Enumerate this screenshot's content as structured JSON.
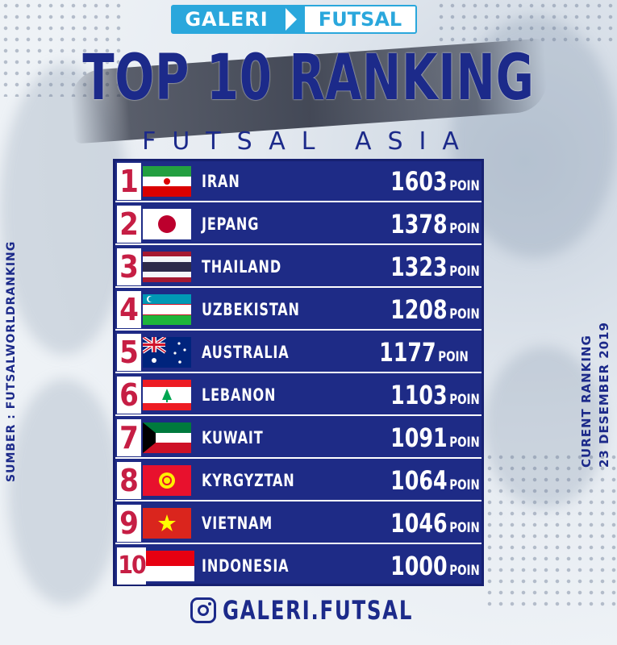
{
  "brand": {
    "left": "GALERI",
    "right": "FUTSAL",
    "icon": "chevron-right-icon"
  },
  "title": "TOP 10 RANKING",
  "subtitle": "FUTSAL ASIA",
  "rankings": [
    {
      "rank": "1",
      "country": "IRAN",
      "points": "1603",
      "unit": "POIN",
      "flag": "iran-flag-icon"
    },
    {
      "rank": "2",
      "country": "JEPANG",
      "points": "1378",
      "unit": "POIN",
      "flag": "japan-flag-icon"
    },
    {
      "rank": "3",
      "country": "THAILAND",
      "points": "1323",
      "unit": "POIN",
      "flag": "thailand-flag-icon"
    },
    {
      "rank": "4",
      "country": "UZBEKISTAN",
      "points": "1208",
      "unit": "POIN",
      "flag": "uzbekistan-flag-icon"
    },
    {
      "rank": "5",
      "country": "AUSTRALIA",
      "points": "1177",
      "unit": "POIN",
      "flag": "australia-flag-icon"
    },
    {
      "rank": "6",
      "country": "LEBANON",
      "points": "1103",
      "unit": "POIN",
      "flag": "lebanon-flag-icon"
    },
    {
      "rank": "7",
      "country": "KUWAIT",
      "points": "1091",
      "unit": "POIN",
      "flag": "kuwait-flag-icon"
    },
    {
      "rank": "8",
      "country": "KYRGYZTAN",
      "points": "1064",
      "unit": "POIN",
      "flag": "kyrgyzstan-flag-icon"
    },
    {
      "rank": "9",
      "country": "VIETNAM",
      "points": "1046",
      "unit": "POIN",
      "flag": "vietnam-flag-icon"
    },
    {
      "rank": "10",
      "country": "INDONESIA",
      "points": "1000",
      "unit": "POIN",
      "flag": "indonesia-flag-icon"
    }
  ],
  "source": "SUMBER : FUTSALWORLDRANKING",
  "ranking_date": {
    "line1": "CURENT RANKING",
    "line2": "23 DESEMBER 2019"
  },
  "instagram": {
    "icon": "instagram-icon",
    "handle": "GALERI.FUTSAL"
  },
  "colors": {
    "navy": "#1e2b86",
    "rank_red": "#c61e44",
    "brand_blue": "#2aa7dc"
  }
}
